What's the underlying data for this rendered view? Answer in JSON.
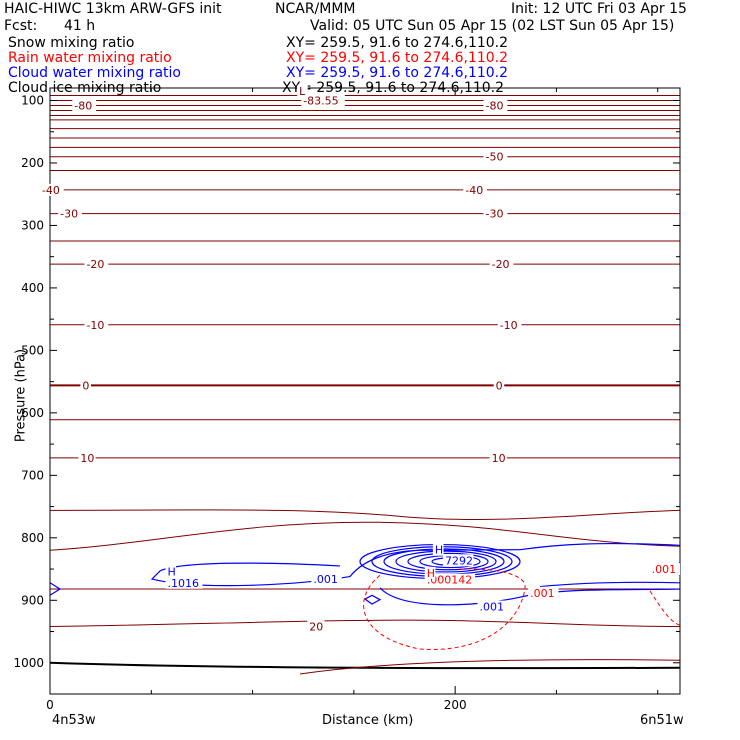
{
  "header": {
    "title_left": "HAIC-HIWC 13km ARW-GFS init",
    "org": "NCAR/MMM",
    "init": "Init: 12 UTC Fri 03 Apr 15",
    "fcst_label": "Fcst:",
    "fcst_value": "41 h",
    "valid": "Valid: 05 UTC Sun 05 Apr 15 (02 LST Sun 05 Apr 15)"
  },
  "fields": [
    {
      "name": "Snow mixing ratio",
      "xy": "XY= 259.5, 91.6 to 274.6,110.2",
      "color": "#000000"
    },
    {
      "name": "Rain water mixing ratio",
      "xy": "XY= 259.5, 91.6 to 274.6,110.2",
      "color": "#ff0000"
    },
    {
      "name": "Cloud water mixing ratio",
      "xy": "XY= 259.5, 91.6 to 274.6,110.2",
      "color": "#0000ff"
    },
    {
      "name": "Cloud ice mixing ratio",
      "xy": "XY= 259.5, 91.6 to 274.6,110.2",
      "color": "#000000"
    }
  ],
  "chart_data": {
    "type": "cross-section contour",
    "xlabel": "Distance (km)",
    "ylabel": "Pressure (hPa)",
    "xlim": [
      0,
      311
    ],
    "ylim": [
      1050,
      80
    ],
    "x_ticks": [
      0,
      200
    ],
    "y_ticks": [
      100,
      200,
      300,
      400,
      500,
      600,
      700,
      800,
      900,
      1000
    ],
    "x_endpoint_labels": [
      "4n53w",
      "6n51w"
    ],
    "temperature_isotherms": {
      "color": "#800000",
      "levels": [
        {
          "p": 92
        },
        {
          "p": 100
        },
        {
          "p": 108
        },
        {
          "p": 116
        },
        {
          "p": 124
        },
        {
          "p": 131
        },
        {
          "p": 145
        },
        {
          "p": 160
        },
        {
          "p": 175
        },
        {
          "p": 190
        },
        {
          "p": 212
        },
        {
          "p": 243
        },
        {
          "p": 281
        },
        {
          "p": 325
        },
        {
          "p": 362
        },
        {
          "p": 459
        },
        {
          "p": 556
        },
        {
          "p": 611
        },
        {
          "p": 672
        },
        {
          "p": 756
        },
        {
          "p": 820
        },
        {
          "p": 882
        },
        {
          "p": 942
        }
      ],
      "labels": [
        {
          "text": "-80",
          "x": 12,
          "p": 108
        },
        {
          "text": "-80",
          "x": 215,
          "p": 108
        },
        {
          "text": "-83.55",
          "x": 125,
          "p": 100
        },
        {
          "text": "L",
          "x": 123,
          "p": 85
        },
        {
          "text": "-50",
          "x": 215,
          "p": 190
        },
        {
          "text": "-40",
          "x": -4,
          "p": 243
        },
        {
          "text": "-40",
          "x": 205,
          "p": 243
        },
        {
          "text": "-30",
          "x": 5,
          "p": 281
        },
        {
          "text": "-30",
          "x": 215,
          "p": 281
        },
        {
          "text": "-20",
          "x": 18,
          "p": 362
        },
        {
          "text": "-20",
          "x": 218,
          "p": 362
        },
        {
          "text": "-10",
          "x": 18,
          "p": 459
        },
        {
          "text": "-10",
          "x": 222,
          "p": 459
        },
        {
          "text": "0",
          "x": 16,
          "p": 556
        },
        {
          "text": "0",
          "x": 220,
          "p": 556
        },
        {
          "text": "10",
          "x": 15,
          "p": 672
        },
        {
          "text": "10",
          "x": 218,
          "p": 672
        },
        {
          "text": "20",
          "x": 128,
          "p": 942
        }
      ]
    },
    "cloud_water_labels": [
      {
        "text": "H",
        "p": 854,
        "x": 58
      },
      {
        "text": ".1016",
        "p": 872,
        "x": 58
      },
      {
        "text": ".001",
        "p": 866,
        "x": 130
      },
      {
        "text": "H",
        "p": 819,
        "x": 190
      },
      {
        "text": "7292",
        "p": 836,
        "x": 195
      },
      {
        "text": ".001",
        "p": 910,
        "x": 212
      }
    ],
    "rain_water_labels": [
      {
        "text": ".000142",
        "p": 867,
        "x": 186
      },
      {
        "text": "H",
        "p": 856,
        "x": 186
      },
      {
        "text": ".001",
        "p": 888,
        "x": 237
      },
      {
        "text": ".001",
        "p": 850,
        "x": 297
      }
    ]
  }
}
